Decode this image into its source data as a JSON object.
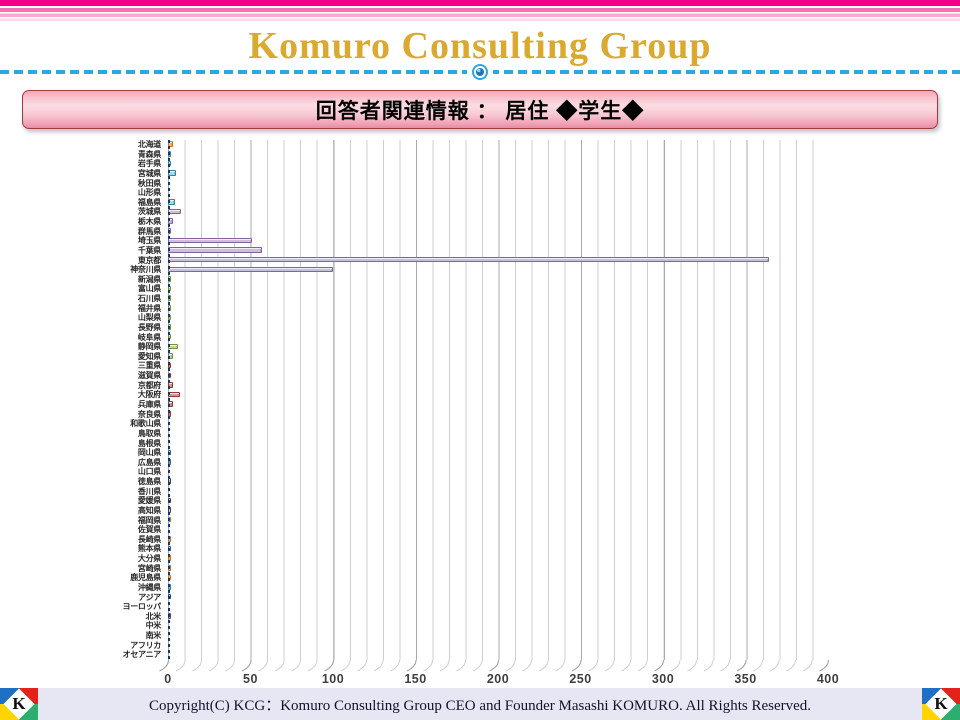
{
  "header": {
    "title": "Komuro Consulting Group",
    "banner": "回答者関連情報 ： 居住 ◆学生◆"
  },
  "footer": {
    "copyright": "Copyright(C)  KCG：Komuro Consulting Group  CEO and Founder  Masashi KOMURO. All Rights Reserved."
  },
  "logo": {
    "letter": "K"
  },
  "chart_data": {
    "type": "bar",
    "orientation": "horizontal",
    "title": "",
    "xlabel": "",
    "ylabel": "",
    "xlim": [
      0,
      400
    ],
    "x_ticks": [
      0,
      50,
      100,
      150,
      200,
      250,
      300,
      350,
      400
    ],
    "grid_step": 10,
    "legend": "none",
    "bars": [
      {
        "label": "北海道",
        "value": 3,
        "fill": "#FAB778",
        "stroke": "#E26B0A"
      },
      {
        "label": "青森県",
        "value": 1,
        "fill": "#A7D8E4",
        "stroke": "#31859C"
      },
      {
        "label": "岩手県",
        "value": 2,
        "fill": "#A7D8E4",
        "stroke": "#31859C"
      },
      {
        "label": "宮城県",
        "value": 5,
        "fill": "#A7D8E4",
        "stroke": "#31859C"
      },
      {
        "label": "秋田県",
        "value": 0,
        "fill": "#A7D8E4",
        "stroke": "#31859C"
      },
      {
        "label": "山形県",
        "value": 0,
        "fill": "#A7D8E4",
        "stroke": "#31859C"
      },
      {
        "label": "福島県",
        "value": 4,
        "fill": "#A7D8E4",
        "stroke": "#31859C"
      },
      {
        "label": "茨城県",
        "value": 8,
        "fill": "#CBBFDB",
        "stroke": "#8064A2"
      },
      {
        "label": "栃木県",
        "value": 3,
        "fill": "#CBBFDB",
        "stroke": "#8064A2"
      },
      {
        "label": "群馬県",
        "value": 1,
        "fill": "#CBBFDB",
        "stroke": "#8064A2"
      },
      {
        "label": "埼玉県",
        "value": 51,
        "fill": "#CBBFDB",
        "stroke": "#8064A2"
      },
      {
        "label": "千葉県",
        "value": 57,
        "fill": "#CBBFDB",
        "stroke": "#8064A2"
      },
      {
        "label": "東京都",
        "value": 364,
        "fill": "#CBBFDB",
        "stroke": "#8064A2"
      },
      {
        "label": "神奈川県",
        "value": 100,
        "fill": "#CBBFDB",
        "stroke": "#8064A2"
      },
      {
        "label": "新潟県",
        "value": 2,
        "fill": "#C5D79F",
        "stroke": "#76923C"
      },
      {
        "label": "富山県",
        "value": 1,
        "fill": "#C5D79F",
        "stroke": "#76923C"
      },
      {
        "label": "石川県",
        "value": 2,
        "fill": "#C5D79F",
        "stroke": "#76923C"
      },
      {
        "label": "福井県",
        "value": 2,
        "fill": "#C5D79F",
        "stroke": "#76923C"
      },
      {
        "label": "山梨県",
        "value": 2,
        "fill": "#C5D79F",
        "stroke": "#76923C"
      },
      {
        "label": "長野県",
        "value": 1,
        "fill": "#C5D79F",
        "stroke": "#76923C"
      },
      {
        "label": "岐阜県",
        "value": 2,
        "fill": "#C5D79F",
        "stroke": "#76923C"
      },
      {
        "label": "静岡県",
        "value": 6,
        "fill": "#C5D79F",
        "stroke": "#76923C"
      },
      {
        "label": "愛知県",
        "value": 3,
        "fill": "#C5D79F",
        "stroke": "#76923C"
      },
      {
        "label": "三重県",
        "value": 1,
        "fill": "#DA9694",
        "stroke": "#953735"
      },
      {
        "label": "滋賀県",
        "value": 1,
        "fill": "#DA9694",
        "stroke": "#953735"
      },
      {
        "label": "京都府",
        "value": 3,
        "fill": "#DA9694",
        "stroke": "#953735"
      },
      {
        "label": "大阪府",
        "value": 7,
        "fill": "#DA9694",
        "stroke": "#953735"
      },
      {
        "label": "兵庫県",
        "value": 3,
        "fill": "#DA9694",
        "stroke": "#953735"
      },
      {
        "label": "奈良県",
        "value": 1,
        "fill": "#DA9694",
        "stroke": "#953735"
      },
      {
        "label": "和歌山県",
        "value": 0,
        "fill": "#DA9694",
        "stroke": "#953735"
      },
      {
        "label": "鳥取県",
        "value": 0,
        "fill": "#95B3D7",
        "stroke": "#376092"
      },
      {
        "label": "島根県",
        "value": 0,
        "fill": "#95B3D7",
        "stroke": "#376092"
      },
      {
        "label": "岡山県",
        "value": 2,
        "fill": "#95B3D7",
        "stroke": "#376092"
      },
      {
        "label": "広島県",
        "value": 1,
        "fill": "#95B3D7",
        "stroke": "#376092"
      },
      {
        "label": "山口県",
        "value": 0,
        "fill": "#95B3D7",
        "stroke": "#376092"
      },
      {
        "label": "徳島県",
        "value": 1,
        "fill": "#D9D9D9",
        "stroke": "#404040"
      },
      {
        "label": "香川県",
        "value": 0,
        "fill": "#D9D9D9",
        "stroke": "#404040"
      },
      {
        "label": "愛媛県",
        "value": 1,
        "fill": "#D9D9D9",
        "stroke": "#404040"
      },
      {
        "label": "高知県",
        "value": 2,
        "fill": "#F2F2F2",
        "stroke": "#404040"
      },
      {
        "label": "福岡県",
        "value": 2,
        "fill": "#FBC08A",
        "stroke": "#E26B0A"
      },
      {
        "label": "佐賀県",
        "value": 0,
        "fill": "#FBC08A",
        "stroke": "#E26B0A"
      },
      {
        "label": "長崎県",
        "value": 1,
        "fill": "#FBC08A",
        "stroke": "#E26B0A"
      },
      {
        "label": "熊本県",
        "value": 1,
        "fill": "#95B3D7",
        "stroke": "#376092"
      },
      {
        "label": "大分県",
        "value": 1,
        "fill": "#FBC08A",
        "stroke": "#E26B0A"
      },
      {
        "label": "宮崎県",
        "value": 1,
        "fill": "#FBC08A",
        "stroke": "#E26B0A"
      },
      {
        "label": "鹿児島県",
        "value": 1,
        "fill": "#FBC08A",
        "stroke": "#E26B0A"
      },
      {
        "label": "沖縄県",
        "value": 1,
        "fill": "#92CDDC",
        "stroke": "#31859C"
      },
      {
        "label": "アジア",
        "value": 1,
        "fill": "#95B3D7",
        "stroke": "#1F497D"
      },
      {
        "label": "ヨーロッパ",
        "value": 0,
        "fill": "#95B3D7",
        "stroke": "#1F497D"
      },
      {
        "label": "北米",
        "value": 2,
        "fill": "#B2A1C7",
        "stroke": "#5F497A"
      },
      {
        "label": "中米",
        "value": 0,
        "fill": "#BFBFBF",
        "stroke": "#7F7F7F"
      },
      {
        "label": "南米",
        "value": 0,
        "fill": "#BFBFBF",
        "stroke": "#7F7F7F"
      },
      {
        "label": "アフリカ",
        "value": 0,
        "fill": "#BFBFBF",
        "stroke": "#7F7F7F"
      },
      {
        "label": "オセアニア",
        "value": 0,
        "fill": "#BFBFBF",
        "stroke": "#7F7F7F"
      }
    ]
  }
}
